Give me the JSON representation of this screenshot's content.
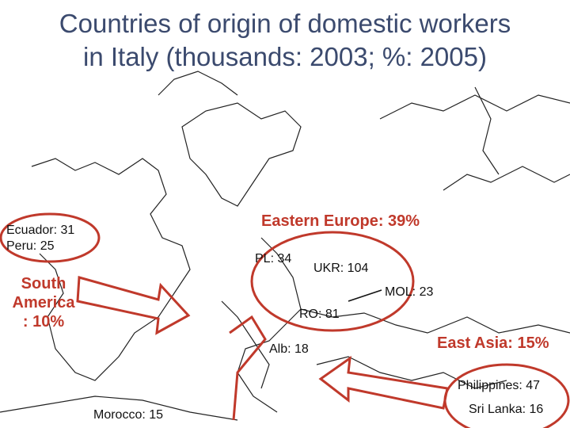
{
  "title": [
    "Countries of origin of domestic workers",
    "in Italy (thousands: 2003; %: 2005)"
  ],
  "regions": {
    "eastern_europe": "Eastern Europe: 39%",
    "south_america": [
      "South",
      "America",
      ": 10%"
    ],
    "east_asia": "East Asia: 15%"
  },
  "countries": {
    "ecuador": "Ecuador: 31",
    "peru": "Peru: 25",
    "poland": "PL: 34",
    "ukraine": "UKR: 104",
    "moldova": "MOL: 23",
    "romania": "RO: 81",
    "albania": "Alb: 18",
    "philippines": "Philippines: 47",
    "sri_lanka": "Sri Lanka: 16",
    "morocco": "Morocco: 15"
  }
}
